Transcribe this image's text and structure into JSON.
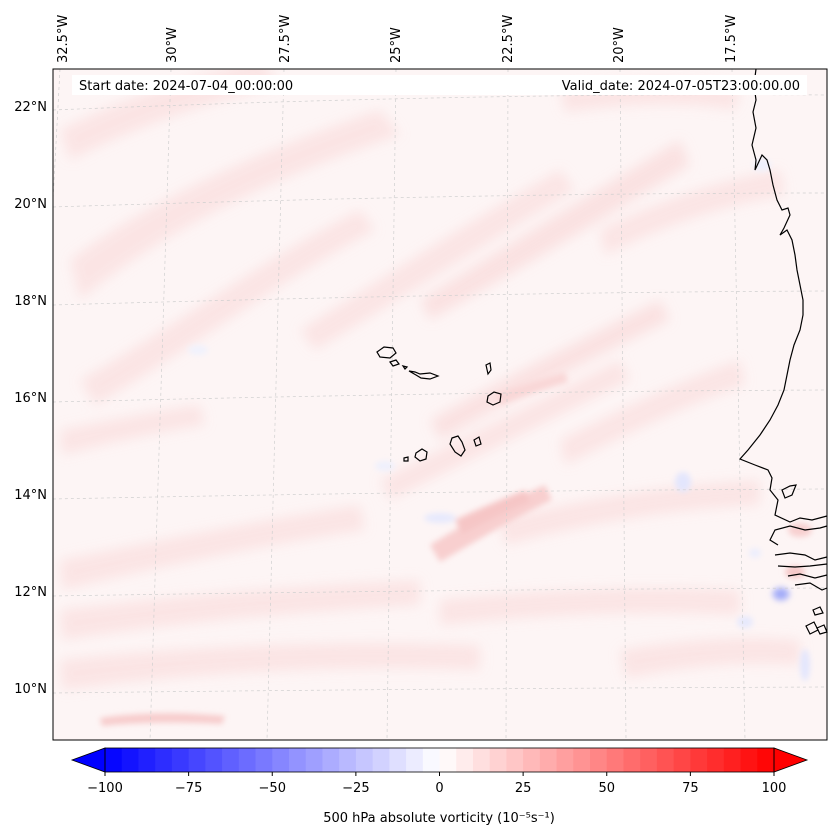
{
  "map": {
    "start_date_label": "Start date: 2024-07-04_00:00:00",
    "valid_date_label": "Valid_date: 2024-07-05T23:00:00.00",
    "lon_labels": [
      "32.5°W",
      "30°W",
      "27.5°W",
      "25°W",
      "22.5°W",
      "20°W",
      "17.5°W"
    ],
    "lat_labels": [
      "22°N",
      "20°N",
      "18°N",
      "16°N",
      "14°N",
      "12°N",
      "10°N"
    ],
    "islands": [
      "Santo Antão",
      "São Vicente",
      "Santa Luzia",
      "São Nicolau",
      "Sal",
      "Boa Vista",
      "Maio",
      "Santiago",
      "Fogo",
      "Brava"
    ],
    "coastline": "West African coast (Mauritania, Senegal, Gambia, Guinea-Bissau)"
  },
  "colorbar": {
    "label": "500 hPa absolute vorticity (10⁻⁵s⁻¹)",
    "ticks": [
      "−100",
      "−75",
      "−50",
      "−25",
      "0",
      "25",
      "50",
      "75",
      "100"
    ],
    "min": -100,
    "max": 100,
    "levels": 41,
    "negative_color": "#0000ff",
    "zero_color": "#ffffff",
    "positive_color": "#ff0000"
  },
  "colors": {
    "field_base": "#fdf5f5",
    "light_pink": "#fbe3e3",
    "medium_pink": "#f8d4d4",
    "light_blue": "#eef0fd",
    "coast": "#000000",
    "grid": "#cfcfcf"
  }
}
